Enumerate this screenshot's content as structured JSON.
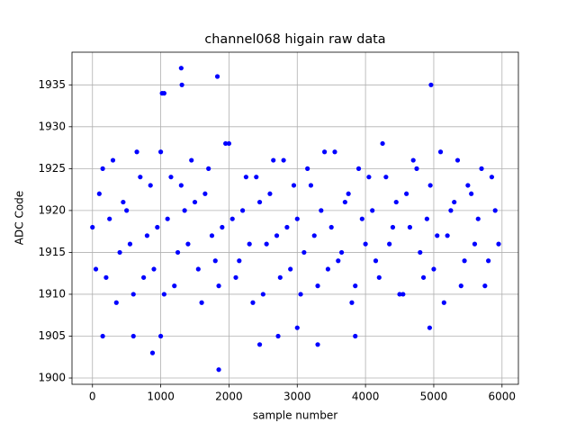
{
  "chart_data": {
    "type": "scatter",
    "title": "channel068 higain raw data",
    "x_label": "sample number",
    "y_label": "ADC Code",
    "xlim": [
      -300,
      6240
    ],
    "ylim": [
      1899.25,
      1938.9
    ],
    "xticks": [
      0,
      1000,
      2000,
      3000,
      4000,
      5000,
      6000
    ],
    "yticks": [
      1900,
      1905,
      1910,
      1915,
      1920,
      1925,
      1930,
      1935
    ],
    "grid": true,
    "series": [
      {
        "color": "#0000ff",
        "x": [
          0,
          100,
          200,
          300,
          400,
          500,
          600,
          700,
          800,
          900,
          1000,
          1100,
          1200,
          1300,
          1400,
          1500,
          1600,
          1700,
          1800,
          1900,
          2000,
          2100,
          2200,
          2300,
          2400,
          2500,
          2600,
          2700,
          2800,
          2900,
          3000,
          3100,
          3200,
          3300,
          3400,
          3500,
          3600,
          3700,
          3800,
          3900,
          4000,
          4100,
          4200,
          4300,
          4400,
          4500,
          4600,
          4700,
          4800,
          4900,
          5000,
          5100,
          5200,
          5300,
          5400,
          5500,
          5600,
          5700,
          5800,
          5900,
          50,
          150,
          250,
          350,
          450,
          550,
          650,
          750,
          850,
          950,
          1050,
          1150,
          1250,
          1350,
          1450,
          1550,
          1650,
          1750,
          1850,
          1950,
          2050,
          2150,
          2250,
          2350,
          2450,
          2550,
          2650,
          2750,
          2850,
          2950,
          3050,
          3150,
          3250,
          3350,
          3450,
          3550,
          3650,
          3750,
          3850,
          3950,
          4050,
          4150,
          4250,
          4350,
          4450,
          4550,
          4650,
          4750,
          4850,
          4950,
          5050,
          5150,
          5250,
          5350,
          5450,
          5550,
          5650,
          5750,
          5850,
          5950,
          1300,
          1310,
          1830,
          4960,
          880,
          1850,
          3300,
          2450,
          1020,
          1050,
          150,
          1000,
          600,
          3850,
          2720,
          3000,
          4940
        ],
        "y": [
          1918,
          1922,
          1912,
          1926,
          1915,
          1920,
          1910,
          1924,
          1917,
          1913,
          1927,
          1919,
          1911,
          1923,
          1916,
          1921,
          1909,
          1925,
          1914,
          1918,
          1928,
          1912,
          1920,
          1916,
          1924,
          1910,
          1922,
          1917,
          1926,
          1913,
          1919,
          1915,
          1923,
          1911,
          1927,
          1918,
          1914,
          1921,
          1909,
          1925,
          1916,
          1920,
          1912,
          1924,
          1918,
          1910,
          1922,
          1926,
          1915,
          1919,
          1913,
          1927,
          1917,
          1921,
          1911,
          1923,
          1916,
          1925,
          1914,
          1920,
          1913,
          1925,
          1919,
          1909,
          1921,
          1916,
          1927,
          1912,
          1923,
          1918,
          1910,
          1924,
          1915,
          1920,
          1926,
          1913,
          1922,
          1917,
          1911,
          1928,
          1919,
          1914,
          1924,
          1909,
          1921,
          1916,
          1926,
          1912,
          1918,
          1923,
          1910,
          1925,
          1917,
          1920,
          1913,
          1927,
          1915,
          1922,
          1911,
          1919,
          1924,
          1914,
          1928,
          1916,
          1921,
          1910,
          1918,
          1925,
          1912,
          1923,
          1917,
          1909,
          1920,
          1926,
          1914,
          1922,
          1919,
          1911,
          1924,
          1916,
          1937,
          1935,
          1936,
          1935,
          1903,
          1901,
          1904,
          1904,
          1934,
          1934,
          1905,
          1905,
          1905,
          1905,
          1905,
          1906,
          1906
        ]
      }
    ]
  }
}
